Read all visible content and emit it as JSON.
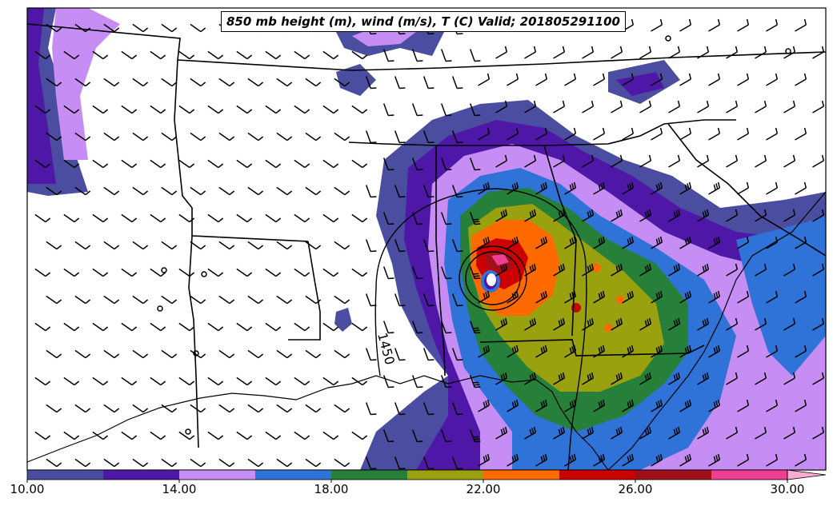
{
  "title": "850 mb height (m), wind (m/s), T (C) Valid; 201805291100",
  "contour_label": "1450",
  "colorbar": {
    "tick_labels": [
      "10.00",
      "14.00",
      "18.00",
      "22.00",
      "26.00",
      "30.00"
    ],
    "colors": [
      "#4b4ea0",
      "#4f17a8",
      "#c68ef5",
      "#2f73d8",
      "#268039",
      "#99a10f",
      "#ff6a00",
      "#cc0000",
      "#a0101a",
      "#ef3f94",
      "#ffaad4"
    ],
    "vmin": 10,
    "vmax": 30,
    "extend": "max"
  },
  "colors": {
    "land": "#ffffff",
    "border": "#000000"
  }
}
